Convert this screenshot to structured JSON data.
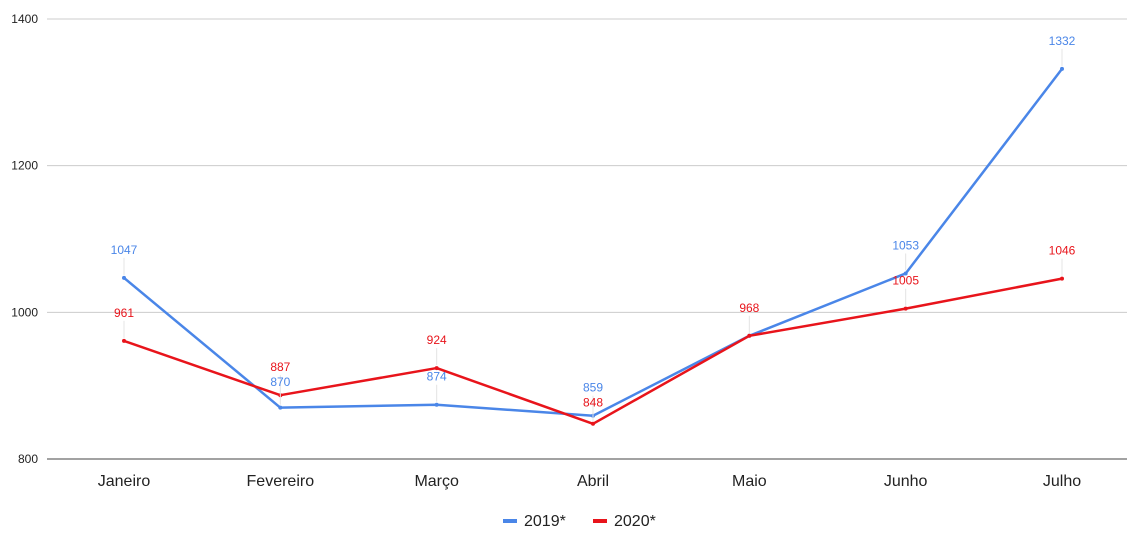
{
  "chart_data": {
    "type": "line",
    "categories": [
      "Janeiro",
      "Fevereiro",
      "Março",
      "Abril",
      "Maio",
      "Junho",
      "Julho"
    ],
    "series": [
      {
        "name": "2019*",
        "color": "#4a86e8",
        "values": [
          1047,
          870,
          874,
          859,
          968,
          1053,
          1332
        ]
      },
      {
        "name": "2020*",
        "color": "#e8141b",
        "values": [
          961,
          887,
          924,
          848,
          968,
          1005,
          1046
        ]
      }
    ],
    "y_ticks": [
      "800",
      "1000",
      "1200",
      "1400"
    ],
    "ylim": [
      800,
      1400
    ],
    "grid": true,
    "legend_position": "bottom-center",
    "title": "",
    "xlabel": "",
    "ylabel": ""
  }
}
